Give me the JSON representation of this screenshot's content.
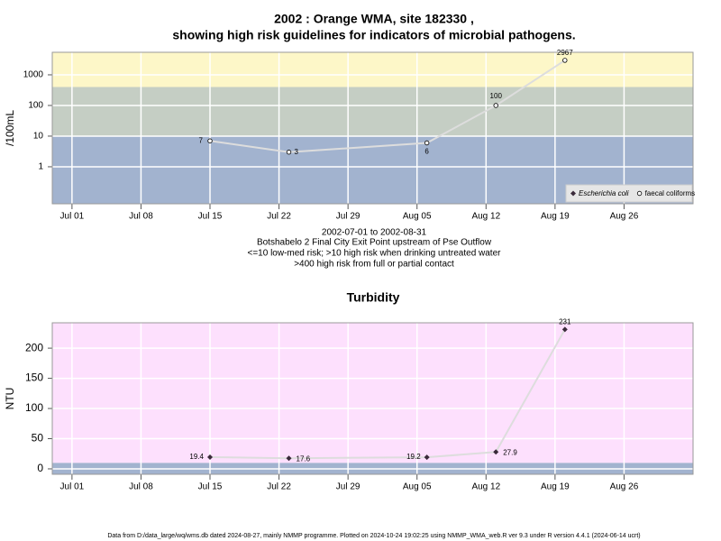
{
  "title": [
    "2002 : Orange WMA, site 182330 ,",
    "showing high risk guidelines for indicators of microbial pathogens."
  ],
  "footer": "Data from D:/data_large/wq/wms.db dated 2024-08-27, mainly NMMP programme. Plotted on 2024-10-24 19:02:25 using NMMP_WMA_web.R ver 9.3 under R version 4.4.1 (2024-06-14 ucrt)",
  "chart_data": [
    {
      "type": "line",
      "ylabel": "/100mL",
      "log_scale": true,
      "notes": [
        "2002-07-01 to 2002-08-31",
        "Botshabelo 2 Final City Exit Point upstream of Pse Outflow",
        "<=10 low-med risk; >10 high risk when drinking untreated water",
        ">400 high risk from full or partial contact"
      ],
      "x": [
        "07-15",
        "07-23",
        "08-06",
        "08-13",
        "08-20"
      ],
      "series": [
        {
          "name": "Escherichia coli",
          "marker": "diamond",
          "color": "#333333",
          "values": [
            null,
            null,
            null,
            null,
            null
          ]
        },
        {
          "name": "faecal coliforms",
          "marker": "circle",
          "color": "#dddddd",
          "values": [
            7,
            3,
            6,
            100,
            2967
          ]
        }
      ],
      "bands": [
        {
          "range": [
            0.062,
            10
          ],
          "color": "#a2b3cf"
        },
        {
          "range": [
            10,
            400
          ],
          "color": "#c5cec4"
        },
        {
          "range": [
            400,
            5430
          ],
          "color": "#fdf7c8"
        }
      ],
      "xlim": [
        "06-29",
        "09-02"
      ],
      "xticks": [
        {
          "value": "07-01",
          "label": "Jul 01"
        },
        {
          "value": "07-08",
          "label": "Jul 08"
        },
        {
          "value": "07-15",
          "label": "Jul 15"
        },
        {
          "value": "07-22",
          "label": "Jul 22"
        },
        {
          "value": "07-29",
          "label": "Jul 29"
        },
        {
          "value": "08-05",
          "label": "Aug 05"
        },
        {
          "value": "08-12",
          "label": "Aug 12"
        },
        {
          "value": "08-19",
          "label": "Aug 19"
        },
        {
          "value": "08-26",
          "label": "Aug 26"
        }
      ],
      "ylim": [
        0.062,
        5430
      ],
      "yticks": [
        1,
        10,
        100,
        1000
      ],
      "grid": true,
      "legend": "bottom-right"
    },
    {
      "type": "line",
      "title": "Turbidity",
      "ylabel": "NTU",
      "log_scale": false,
      "x": [
        "07-15",
        "07-23",
        "08-06",
        "08-13",
        "08-20"
      ],
      "series": [
        {
          "marker": "diamond",
          "color": "#dddddd",
          "values": [
            19.4,
            17.6,
            19.2,
            27.9,
            231
          ]
        }
      ],
      "bands": [
        {
          "range": [
            -9,
            10
          ],
          "color": "#a2b3cf"
        },
        {
          "range": [
            10,
            242
          ],
          "color": "#fde0fd"
        }
      ],
      "xlim": [
        "06-29",
        "09-02"
      ],
      "xticks": [
        {
          "value": "07-01",
          "label": "Jul 01"
        },
        {
          "value": "07-08",
          "label": "Jul 08"
        },
        {
          "value": "07-15",
          "label": "Jul 15"
        },
        {
          "value": "07-22",
          "label": "Jul 22"
        },
        {
          "value": "07-29",
          "label": "Jul 29"
        },
        {
          "value": "08-05",
          "label": "Aug 05"
        },
        {
          "value": "08-12",
          "label": "Aug 12"
        },
        {
          "value": "08-19",
          "label": "Aug 19"
        },
        {
          "value": "08-26",
          "label": "Aug 26"
        }
      ],
      "ylim": [
        -9,
        242
      ],
      "yticks": [
        0,
        50,
        100,
        150,
        200
      ],
      "grid": true
    }
  ]
}
